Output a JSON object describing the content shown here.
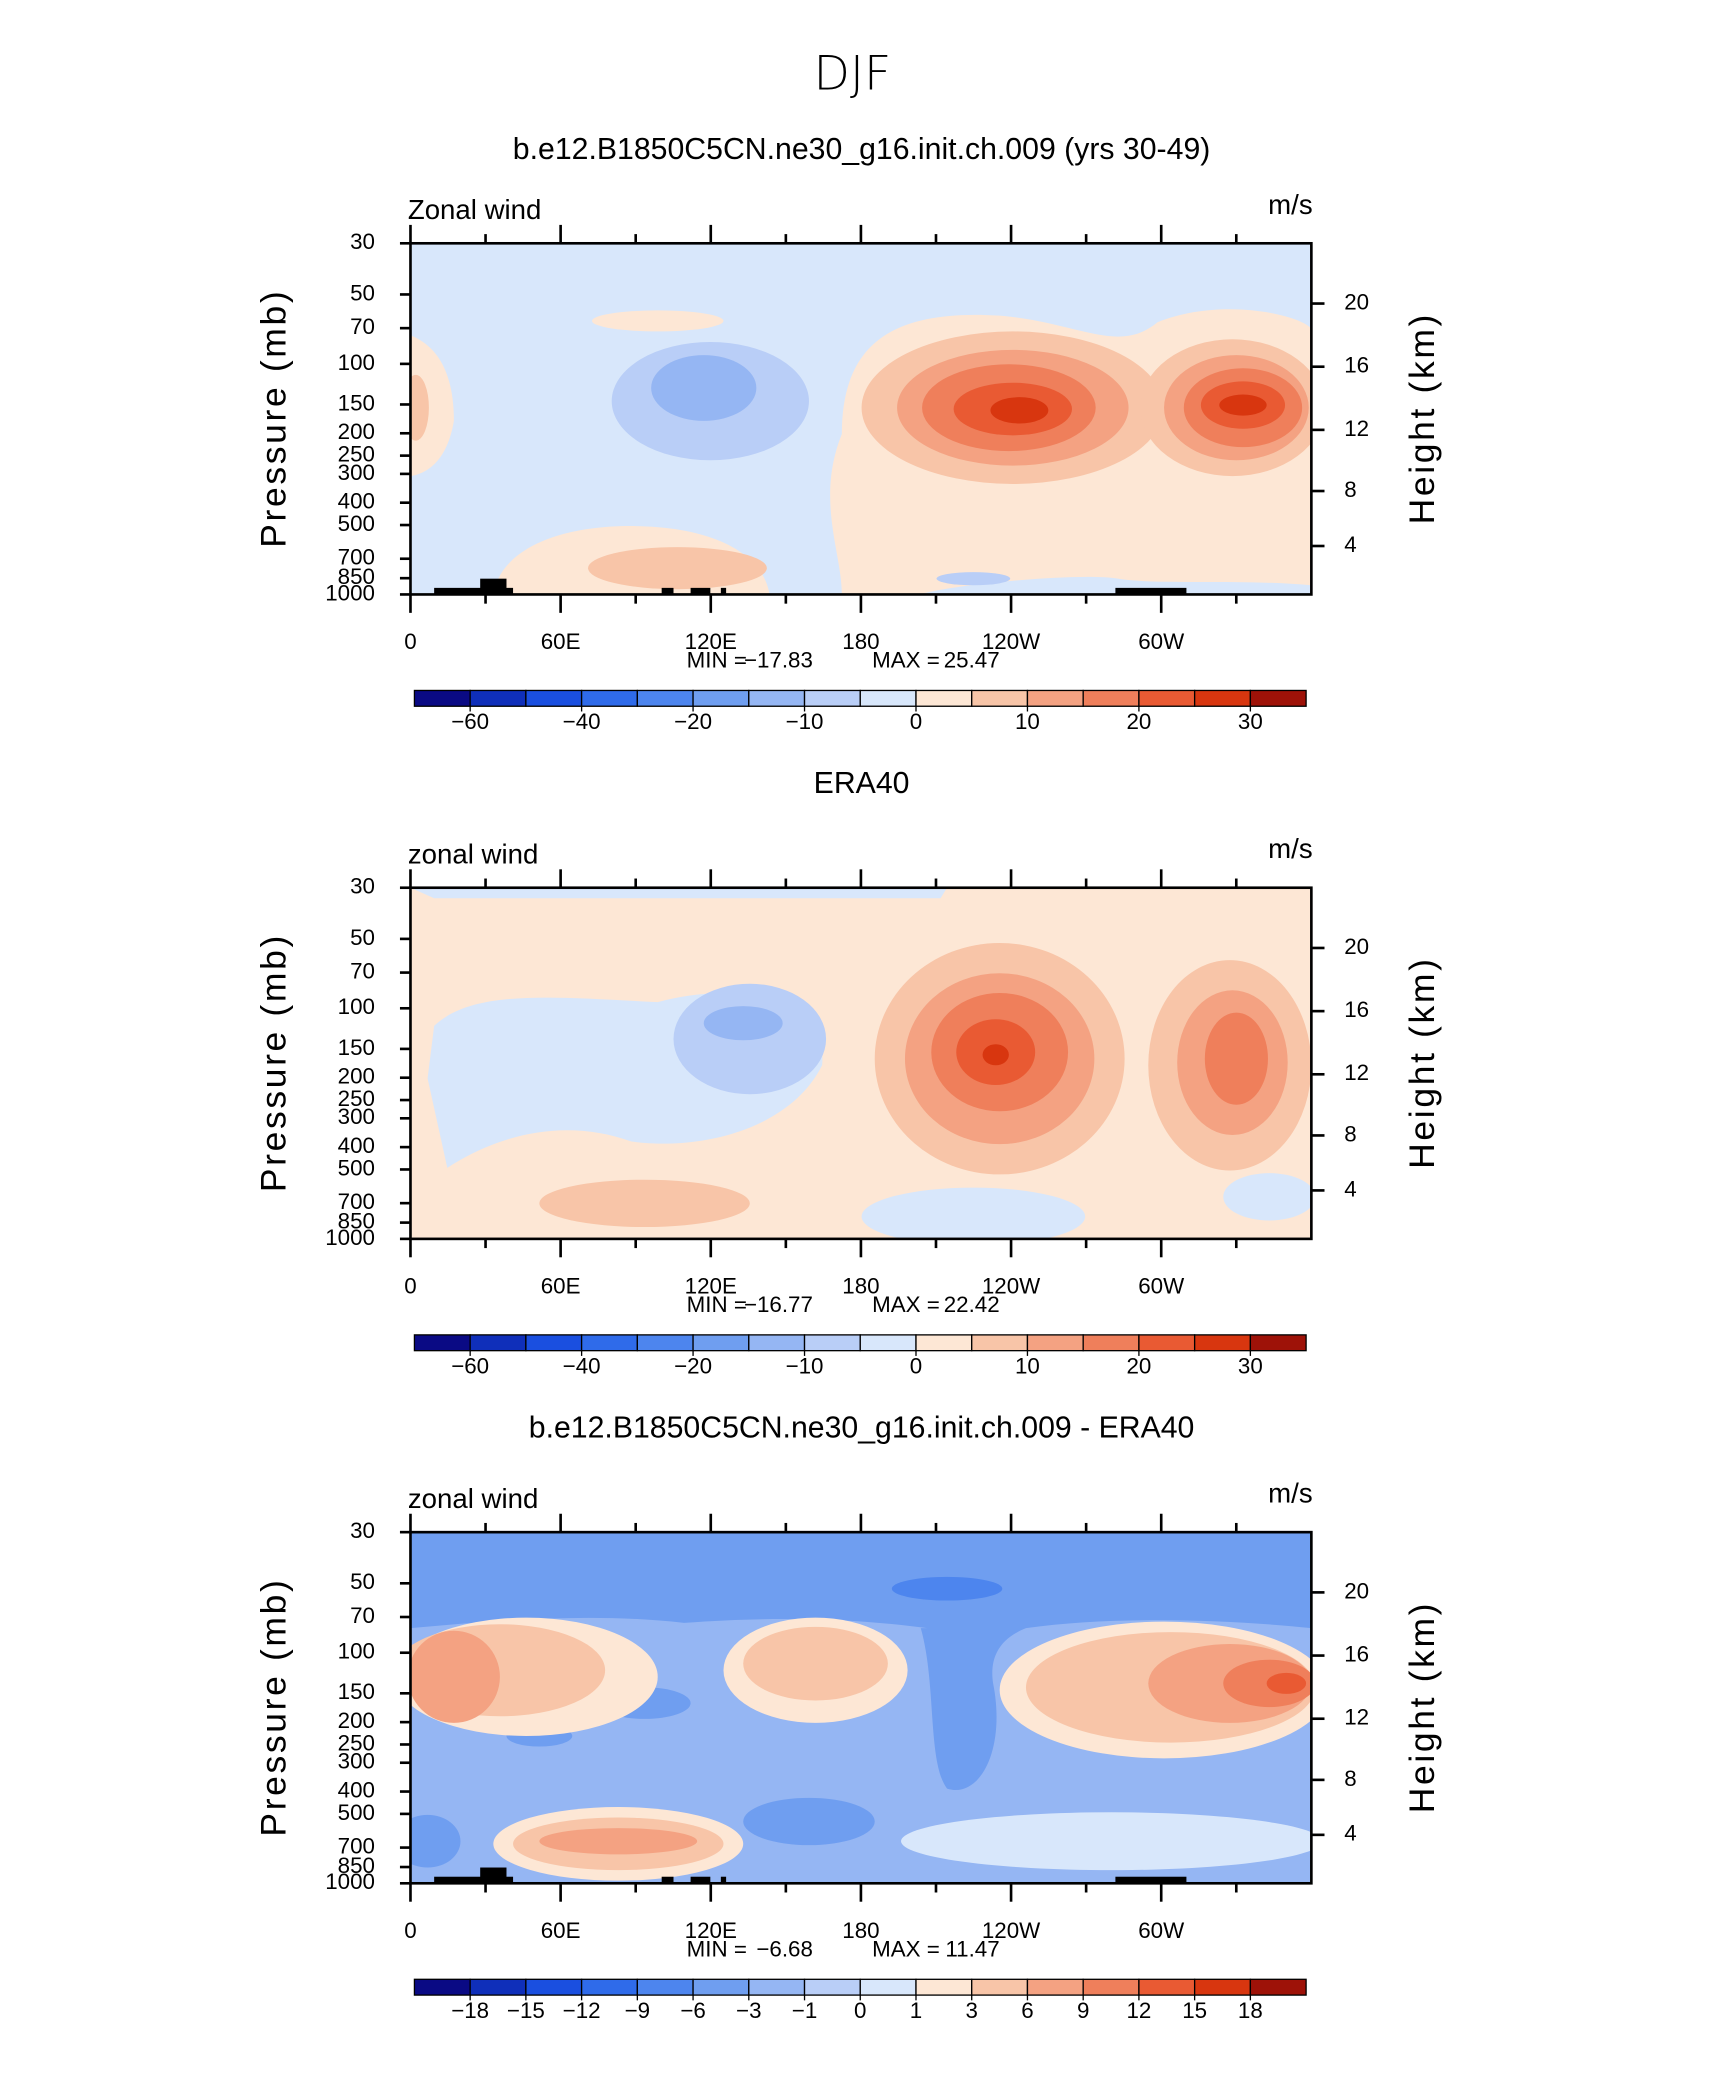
{
  "title": "DJF",
  "chart_data": [
    {
      "type": "contour",
      "title": "b.e12.B1850C5CN.ne30_g16.init.ch.009 (yrs 30-49)",
      "left_label": "Zonal wind",
      "right_label": "m/s",
      "ylabel": "Pressure (mb)",
      "y2label": "Height (km)",
      "xlim": [
        0,
        360
      ],
      "xticks": [
        0,
        {
          "value": 60,
          "label": "60E"
        },
        {
          "value": 120,
          "label": "120E"
        },
        180,
        {
          "value": 240,
          "label": "120W"
        },
        {
          "value": 300,
          "label": "60W"
        }
      ],
      "ylim": [
        1000,
        30
      ],
      "ylog": true,
      "yticks": [
        30,
        50,
        70,
        100,
        150,
        200,
        250,
        300,
        400,
        500,
        700,
        850,
        1000
      ],
      "y2scale": "standard-atmosphere",
      "y2ticks": [
        4,
        8,
        12,
        16,
        20
      ],
      "stats": [
        {
          "label": "MIN =",
          "value": "−17.83"
        },
        {
          "label": "MAX =",
          "value": "25.47"
        }
      ],
      "colorbar": {
        "levels": [
          {
            "value": -60,
            "label": "−60"
          },
          {
            "value": -40,
            "label": "−40"
          },
          {
            "value": -20,
            "label": "−20"
          },
          {
            "value": -10,
            "label": "−10"
          },
          0,
          10,
          20,
          30
        ],
        "colors": [
          "#0a0a84",
          "#0f2fba",
          "#1a4fe0",
          "#2f6bea",
          "#4d85ee",
          "#6f9ef0",
          "#95b6f3",
          "#b9cef7",
          "#d8e7fb",
          "#fde7d5",
          "#f8c5a8",
          "#f4a282",
          "#ef7f5b",
          "#e95a33",
          "#d8360f",
          "#9e1208"
        ]
      }
    },
    {
      "type": "contour",
      "title": "ERA40",
      "left_label": "zonal wind",
      "right_label": "m/s",
      "ylabel": "Pressure (mb)",
      "y2label": "Height (km)",
      "xlim": [
        0,
        360
      ],
      "xticks": [
        0,
        {
          "value": 60,
          "label": "60E"
        },
        {
          "value": 120,
          "label": "120E"
        },
        180,
        {
          "value": 240,
          "label": "120W"
        },
        {
          "value": 300,
          "label": "60W"
        }
      ],
      "ylim": [
        1000,
        30
      ],
      "ylog": true,
      "yticks": [
        30,
        50,
        70,
        100,
        150,
        200,
        250,
        300,
        400,
        500,
        700,
        850,
        1000
      ],
      "y2scale": "standard-atmosphere",
      "y2ticks": [
        4,
        8,
        12,
        16,
        20
      ],
      "stats": [
        {
          "label": "MIN =",
          "value": "−16.77"
        },
        {
          "label": "MAX =",
          "value": "22.42"
        }
      ],
      "colorbar": {
        "levels": [
          {
            "value": -60,
            "label": "−60"
          },
          {
            "value": -40,
            "label": "−40"
          },
          {
            "value": -20,
            "label": "−20"
          },
          {
            "value": -10,
            "label": "−10"
          },
          0,
          10,
          20,
          30
        ],
        "colors": [
          "#0a0a84",
          "#0f2fba",
          "#1a4fe0",
          "#2f6bea",
          "#4d85ee",
          "#6f9ef0",
          "#95b6f3",
          "#b9cef7",
          "#d8e7fb",
          "#fde7d5",
          "#f8c5a8",
          "#f4a282",
          "#ef7f5b",
          "#e95a33",
          "#d8360f",
          "#9e1208"
        ]
      }
    },
    {
      "type": "contour",
      "title": "b.e12.B1850C5CN.ne30_g16.init.ch.009 - ERA40",
      "left_label": "zonal wind",
      "right_label": "m/s",
      "ylabel": "Pressure (mb)",
      "y2label": "Height (km)",
      "xlim": [
        0,
        360
      ],
      "xticks": [
        0,
        {
          "value": 60,
          "label": "60E"
        },
        {
          "value": 120,
          "label": "120E"
        },
        180,
        {
          "value": 240,
          "label": "120W"
        },
        {
          "value": 300,
          "label": "60W"
        }
      ],
      "ylim": [
        1000,
        30
      ],
      "ylog": true,
      "yticks": [
        30,
        50,
        70,
        100,
        150,
        200,
        250,
        300,
        400,
        500,
        700,
        850,
        1000
      ],
      "y2scale": "standard-atmosphere",
      "y2ticks": [
        4,
        8,
        12,
        16,
        20
      ],
      "stats": [
        {
          "label": "MIN =",
          "value": "−6.68"
        },
        {
          "label": "MAX =",
          "value": "11.47"
        }
      ],
      "colorbar": {
        "levels": [
          {
            "value": -18,
            "label": "−18"
          },
          {
            "value": -15,
            "label": "−15"
          },
          {
            "value": -12,
            "label": "−12"
          },
          {
            "value": -9,
            "label": "−9"
          },
          {
            "value": -6,
            "label": "−6"
          },
          {
            "value": -3,
            "label": "−3"
          },
          {
            "value": -1,
            "label": "−1"
          },
          0,
          1,
          3,
          6,
          9,
          12,
          15,
          18
        ],
        "colors": [
          "#0a0a84",
          "#0f2fba",
          "#1a4fe0",
          "#2f6bea",
          "#4d85ee",
          "#6f9ef0",
          "#95b6f3",
          "#b9cef7",
          "#d8e7fb",
          "#fde7d5",
          "#f8c5a8",
          "#f4a282",
          "#ef7f5b",
          "#e95a33",
          "#d8360f",
          "#9e1208"
        ]
      }
    }
  ]
}
